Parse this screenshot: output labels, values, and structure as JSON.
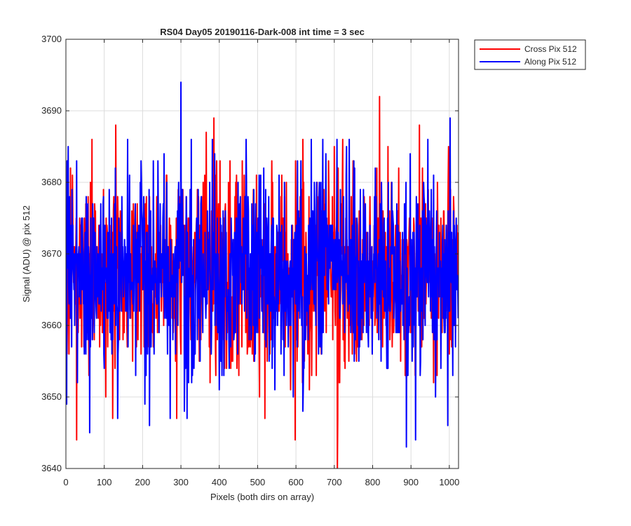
{
  "chart_data": {
    "type": "line",
    "title": "RS04 Day05 20190116-Dark-008 int time = 3 sec",
    "xlabel": "Pixels (both dirs on array)",
    "ylabel": "Signal (ADU) @ pix 512",
    "xlim": [
      0,
      1024
    ],
    "ylim": [
      3640,
      3700
    ],
    "xticks": [
      0,
      100,
      200,
      300,
      400,
      500,
      600,
      700,
      800,
      900,
      1000
    ],
    "yticks": [
      3640,
      3650,
      3660,
      3670,
      3680,
      3690,
      3700
    ],
    "grid": true,
    "legend": "outside-top-right",
    "noise_model": {
      "count": 1024,
      "mean": 3667,
      "std": 7
    },
    "series": [
      {
        "name": "Cross Pix 512",
        "color": "#ff0000",
        "seed": 17,
        "extremes": [
          [
            28,
            3644
          ],
          [
            68,
            3686
          ],
          [
            122,
            3647
          ],
          [
            130,
            3688
          ],
          [
            366,
            3687
          ],
          [
            386,
            3689
          ],
          [
            598,
            3644
          ],
          [
            700,
            3685
          ],
          [
            708,
            3640
          ],
          [
            818,
            3692
          ],
          [
            922,
            3688
          ]
        ]
      },
      {
        "name": "Along Pix 512",
        "color": "#0000ff",
        "seed": 43,
        "extremes": [
          [
            2,
            3649
          ],
          [
            6,
            3685
          ],
          [
            62,
            3645
          ],
          [
            218,
            3646
          ],
          [
            300,
            3694
          ],
          [
            316,
            3647
          ],
          [
            640,
            3686
          ],
          [
            888,
            3643
          ],
          [
            912,
            3644
          ],
          [
            996,
            3646
          ],
          [
            1002,
            3689
          ]
        ]
      }
    ]
  }
}
